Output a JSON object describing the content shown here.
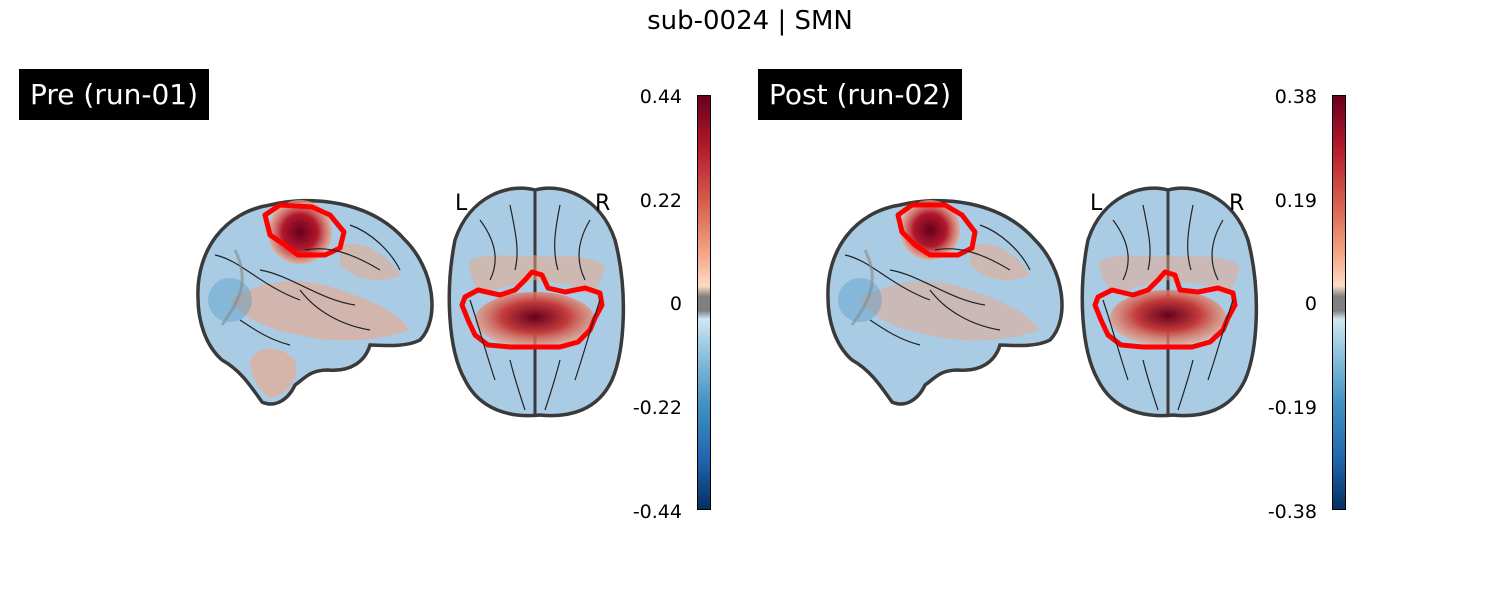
{
  "figure": {
    "title": "sub-0024 | SMN"
  },
  "panels": [
    {
      "label": "Pre (run-01)",
      "orientation_left": "L",
      "orientation_right": "R",
      "colorbar": {
        "ticks": [
          "0.44",
          "0.22",
          "0",
          "-0.22",
          "-0.44"
        ],
        "vmin": -0.44,
        "vmax": 0.44,
        "colormap": "RdBu_r",
        "threshold_color": "#808080"
      }
    },
    {
      "label": "Post (run-02)",
      "orientation_left": "L",
      "orientation_right": "R",
      "colorbar": {
        "ticks": [
          "0.38",
          "0.19",
          "0",
          "-0.19",
          "-0.38"
        ],
        "vmin": -0.38,
        "vmax": 0.38,
        "colormap": "RdBu_r",
        "threshold_color": "#808080"
      }
    }
  ],
  "colors": {
    "roi_outline": "#ff0000",
    "brain_outline": "#3a3a3a",
    "label_bg": "#000000"
  }
}
